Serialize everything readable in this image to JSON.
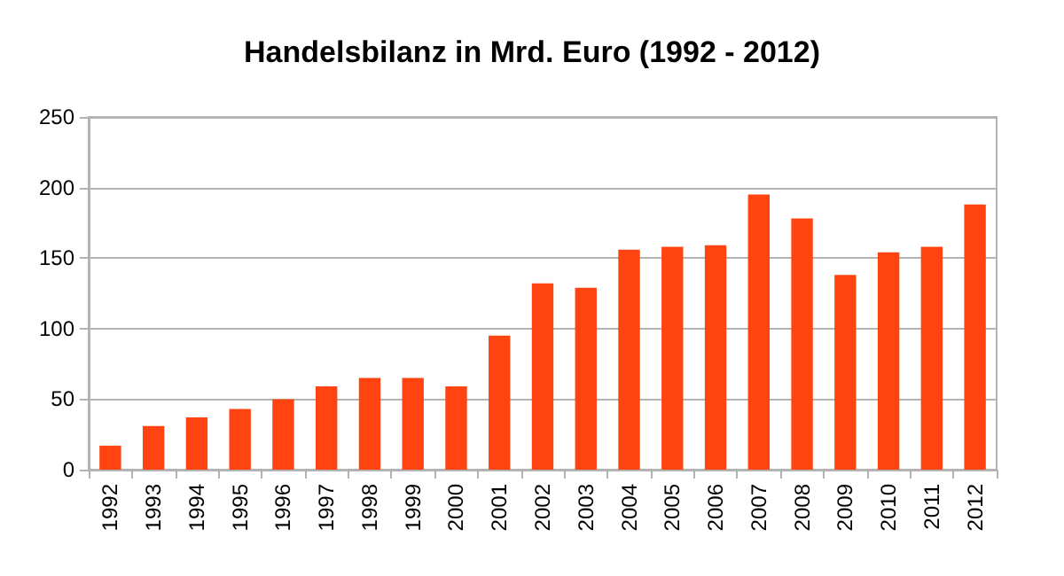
{
  "chart_data": {
    "type": "bar",
    "title": "Handelsbilanz in Mrd. Euro (1992 - 2012)",
    "categories": [
      "1992",
      "1993",
      "1994",
      "1995",
      "1996",
      "1997",
      "1998",
      "1999",
      "2000",
      "2001",
      "2002",
      "2003",
      "2004",
      "2005",
      "2006",
      "2007",
      "2008",
      "2009",
      "2010",
      "2011",
      "2012"
    ],
    "values": [
      17,
      31,
      37,
      43,
      50,
      59,
      65,
      65,
      59,
      95,
      132,
      129,
      156,
      158,
      159,
      195,
      178,
      138,
      154,
      158,
      188
    ],
    "color": "#ff4411",
    "ylim": [
      0,
      250
    ],
    "yticks": [
      0,
      50,
      100,
      150,
      200,
      250
    ],
    "grid": "y"
  }
}
